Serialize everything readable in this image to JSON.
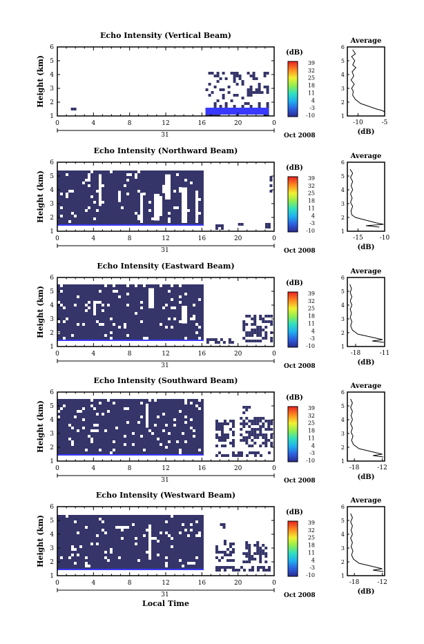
{
  "figure": {
    "x_axis_title": "Local Time",
    "colorbar_unit": "(dB)",
    "colorbar_ticks": [
      "39",
      "32",
      "25",
      "18",
      "11",
      "4",
      "-3",
      "-10"
    ],
    "colors": {
      "echo": "#35356a",
      "echo_edge": "#3a3aff",
      "axis": "#000000",
      "background": "#ffffff"
    }
  },
  "chart_data": [
    {
      "type": "heatmap",
      "title": "Echo Intensity (Vertical Beam)",
      "xlabel": "",
      "ylabel": "Height (km)",
      "x_ticks": [
        "0",
        "4",
        "8",
        "12",
        "16",
        "20",
        "0"
      ],
      "date_label": "31",
      "date_right_label": "Oct 2008",
      "x_range_hours": [
        0,
        24
      ],
      "ylim": [
        1,
        6
      ],
      "y_ticks": [
        "1",
        "2",
        "3",
        "4",
        "5",
        "6"
      ],
      "coverage_hours": [
        [
          16.4,
          23.4
        ]
      ],
      "coverage_km": [
        1.1,
        4.2
      ],
      "dense_band_km": [
        1.1,
        1.6
      ],
      "density": 0.3,
      "dense": false,
      "extra_patches": [
        {
          "h": [
            1.5,
            2.0
          ],
          "km": [
            1.5,
            1.6
          ]
        }
      ],
      "profile": {
        "title": "Average",
        "xlabel": "(dB)",
        "x_ticks": [
          "-10",
          "-5"
        ],
        "xlim": [
          -12,
          -5
        ],
        "ylim": [
          1,
          6
        ],
        "y_ticks": [
          "1",
          "2",
          "3",
          "4",
          "5",
          "6"
        ],
        "curve": [
          [
            -11.0,
            5.8
          ],
          [
            -10.5,
            5.5
          ],
          [
            -11.2,
            5.3
          ],
          [
            -10.6,
            5.0
          ],
          [
            -11.0,
            4.7
          ],
          [
            -10.4,
            4.5
          ],
          [
            -11.1,
            4.2
          ],
          [
            -10.8,
            3.9
          ],
          [
            -11.3,
            3.6
          ],
          [
            -10.7,
            3.3
          ],
          [
            -11.2,
            3.0
          ],
          [
            -10.9,
            2.8
          ],
          [
            -11.0,
            2.5
          ],
          [
            -10.5,
            2.2
          ],
          [
            -9.5,
            1.9
          ],
          [
            -8.0,
            1.7
          ],
          [
            -6.5,
            1.5
          ],
          [
            -5.5,
            1.4
          ],
          [
            -5.0,
            1.3
          ]
        ]
      }
    },
    {
      "type": "heatmap",
      "title": "Echo Intensity (Northward Beam)",
      "xlabel": "",
      "ylabel": "Height (km)",
      "x_ticks": [
        "0",
        "4",
        "8",
        "12",
        "16",
        "20",
        "0"
      ],
      "date_label": "31",
      "date_right_label": "Oct 2008",
      "x_range_hours": [
        0,
        24
      ],
      "ylim": [
        1,
        6
      ],
      "y_ticks": [
        "1",
        "2",
        "3",
        "4",
        "5",
        "6"
      ],
      "coverage_hours": [
        [
          0,
          16.2
        ]
      ],
      "coverage_km": [
        1.4,
        5.4
      ],
      "dense_band_km": [
        1.4,
        1.5
      ],
      "density": 0.92,
      "dense": true,
      "extra_patches": [
        {
          "h": [
            17.5,
            18.4
          ],
          "km": [
            1.2,
            1.5
          ]
        },
        {
          "h": [
            20.0,
            20.5
          ],
          "km": [
            1.4,
            1.6
          ]
        },
        {
          "h": [
            23.0,
            23.6
          ],
          "km": [
            1.2,
            1.6
          ]
        },
        {
          "h": [
            23.5,
            23.8
          ],
          "km": [
            3.5,
            5.0
          ]
        }
      ],
      "profile": {
        "title": "Average",
        "xlabel": "(dB)",
        "x_ticks": [
          "-15",
          "-10"
        ],
        "xlim": [
          -17,
          -10
        ],
        "ylim": [
          1,
          6
        ],
        "y_ticks": [
          "1",
          "2",
          "3",
          "4",
          "5",
          "6"
        ],
        "curve": [
          [
            -16.5,
            5.5
          ],
          [
            -16.0,
            5.2
          ],
          [
            -16.4,
            4.9
          ],
          [
            -16.0,
            4.6
          ],
          [
            -16.3,
            4.3
          ],
          [
            -16.0,
            4.0
          ],
          [
            -16.4,
            3.7
          ],
          [
            -16.1,
            3.4
          ],
          [
            -16.4,
            3.1
          ],
          [
            -16.0,
            2.8
          ],
          [
            -16.3,
            2.5
          ],
          [
            -16.2,
            2.2
          ],
          [
            -15.5,
            2.0
          ],
          [
            -13.5,
            1.8
          ],
          [
            -11.5,
            1.6
          ],
          [
            -10.2,
            1.5
          ],
          [
            -13.5,
            1.4
          ],
          [
            -11.0,
            1.3
          ]
        ]
      }
    },
    {
      "type": "heatmap",
      "title": "Echo Intensity (Eastward Beam)",
      "xlabel": "",
      "ylabel": "Height (km)",
      "x_ticks": [
        "0",
        "4",
        "8",
        "12",
        "16",
        "20",
        "0"
      ],
      "date_label": "31",
      "date_right_label": "Oct 2008",
      "x_range_hours": [
        0,
        24
      ],
      "ylim": [
        1,
        6
      ],
      "y_ticks": [
        "1",
        "2",
        "3",
        "4",
        "5",
        "6"
      ],
      "coverage_hours": [
        [
          0,
          16.2
        ]
      ],
      "coverage_km": [
        1.4,
        5.5
      ],
      "dense_band_km": [
        1.4,
        1.5
      ],
      "density": 0.92,
      "dense": true,
      "extra_patches": [
        {
          "h": [
            16.5,
            19.5
          ],
          "km": [
            1.2,
            1.6
          ]
        },
        {
          "h": [
            20.5,
            23.8
          ],
          "km": [
            1.3,
            3.3
          ]
        }
      ],
      "profile": {
        "title": "Average",
        "xlabel": "(dB)",
        "x_ticks": [
          "-18",
          "-11"
        ],
        "xlim": [
          -20,
          -11
        ],
        "ylim": [
          1,
          6
        ],
        "y_ticks": [
          "1",
          "2",
          "3",
          "4",
          "5",
          "6"
        ],
        "curve": [
          [
            -19.4,
            5.5
          ],
          [
            -19.0,
            5.2
          ],
          [
            -19.3,
            4.9
          ],
          [
            -18.9,
            4.6
          ],
          [
            -19.3,
            4.3
          ],
          [
            -18.9,
            4.0
          ],
          [
            -19.3,
            3.7
          ],
          [
            -19.0,
            3.4
          ],
          [
            -19.3,
            3.1
          ],
          [
            -18.9,
            2.8
          ],
          [
            -19.2,
            2.5
          ],
          [
            -18.8,
            2.2
          ],
          [
            -17.5,
            1.9
          ],
          [
            -14.5,
            1.7
          ],
          [
            -11.5,
            1.5
          ],
          [
            -14.0,
            1.4
          ],
          [
            -11.2,
            1.3
          ]
        ]
      }
    },
    {
      "type": "heatmap",
      "title": "Echo Intensity (Southward Beam)",
      "xlabel": "",
      "ylabel": "Height (km)",
      "x_ticks": [
        "0",
        "4",
        "8",
        "12",
        "16",
        "20",
        "0"
      ],
      "date_label": "31",
      "date_right_label": "Oct 2008",
      "x_range_hours": [
        0,
        24
      ],
      "ylim": [
        1,
        6
      ],
      "y_ticks": [
        "1",
        "2",
        "3",
        "4",
        "5",
        "6"
      ],
      "coverage_hours": [
        [
          0,
          16.2
        ]
      ],
      "coverage_km": [
        1.4,
        5.5
      ],
      "dense_band_km": [
        1.4,
        1.5
      ],
      "density": 0.93,
      "dense": true,
      "extra_patches": [
        {
          "h": [
            17.5,
            23.5
          ],
          "km": [
            1.3,
            1.7
          ]
        },
        {
          "h": [
            17.5,
            19.5
          ],
          "km": [
            2.0,
            4.0
          ]
        },
        {
          "h": [
            20.2,
            23.6
          ],
          "km": [
            2.0,
            4.2
          ]
        },
        {
          "h": [
            20.5,
            21.2
          ],
          "km": [
            4.5,
            5.0
          ]
        }
      ],
      "profile": {
        "title": "Average",
        "xlabel": "(dB)",
        "x_ticks": [
          "-18",
          "-12"
        ],
        "xlim": [
          -19.5,
          -11.5
        ],
        "ylim": [
          1,
          6
        ],
        "y_ticks": [
          "1",
          "2",
          "3",
          "4",
          "5",
          "6"
        ],
        "curve": [
          [
            -18.8,
            5.5
          ],
          [
            -18.4,
            5.2
          ],
          [
            -18.8,
            4.9
          ],
          [
            -18.4,
            4.6
          ],
          [
            -18.7,
            4.3
          ],
          [
            -18.4,
            4.0
          ],
          [
            -18.8,
            3.7
          ],
          [
            -18.4,
            3.4
          ],
          [
            -18.7,
            3.1
          ],
          [
            -18.3,
            2.8
          ],
          [
            -18.6,
            2.5
          ],
          [
            -18.2,
            2.2
          ],
          [
            -17.0,
            1.9
          ],
          [
            -14.5,
            1.7
          ],
          [
            -12.0,
            1.5
          ],
          [
            -14.0,
            1.4
          ],
          [
            -11.8,
            1.3
          ]
        ]
      }
    },
    {
      "type": "heatmap",
      "title": "Echo Intensity (Westward Beam)",
      "xlabel": "Local Time",
      "ylabel": "Height (km)",
      "x_ticks": [
        "0",
        "4",
        "8",
        "12",
        "16",
        "20",
        "0"
      ],
      "date_label": "31",
      "date_right_label": "Oct 2008",
      "x_range_hours": [
        0,
        24
      ],
      "ylim": [
        1,
        6
      ],
      "y_ticks": [
        "1",
        "2",
        "3",
        "4",
        "5",
        "6"
      ],
      "coverage_hours": [
        [
          0,
          16.2
        ]
      ],
      "coverage_km": [
        1.4,
        5.4
      ],
      "dense_band_km": [
        1.4,
        1.5
      ],
      "density": 0.92,
      "dense": true,
      "extra_patches": [
        {
          "h": [
            17.5,
            23.5
          ],
          "km": [
            1.3,
            1.7
          ]
        },
        {
          "h": [
            17.5,
            19.5
          ],
          "km": [
            2.0,
            3.6
          ]
        },
        {
          "h": [
            20.5,
            23.0
          ],
          "km": [
            2.0,
            3.5
          ]
        },
        {
          "h": [
            18.0,
            18.5
          ],
          "km": [
            4.3,
            4.8
          ]
        }
      ],
      "profile": {
        "title": "Average",
        "xlabel": "(dB)",
        "x_ticks": [
          "-18",
          "-12"
        ],
        "xlim": [
          -19.5,
          -11.5
        ],
        "ylim": [
          1,
          6
        ],
        "y_ticks": [
          "1",
          "2",
          "3",
          "4",
          "5",
          "6"
        ],
        "curve": [
          [
            -18.8,
            5.5
          ],
          [
            -18.4,
            5.2
          ],
          [
            -18.8,
            4.9
          ],
          [
            -18.4,
            4.6
          ],
          [
            -18.7,
            4.3
          ],
          [
            -18.4,
            4.0
          ],
          [
            -18.8,
            3.7
          ],
          [
            -18.4,
            3.4
          ],
          [
            -18.7,
            3.1
          ],
          [
            -18.3,
            2.8
          ],
          [
            -18.6,
            2.5
          ],
          [
            -18.2,
            2.2
          ],
          [
            -17.0,
            1.9
          ],
          [
            -14.5,
            1.7
          ],
          [
            -12.0,
            1.5
          ],
          [
            -14.0,
            1.4
          ],
          [
            -11.8,
            1.3
          ]
        ]
      }
    }
  ]
}
